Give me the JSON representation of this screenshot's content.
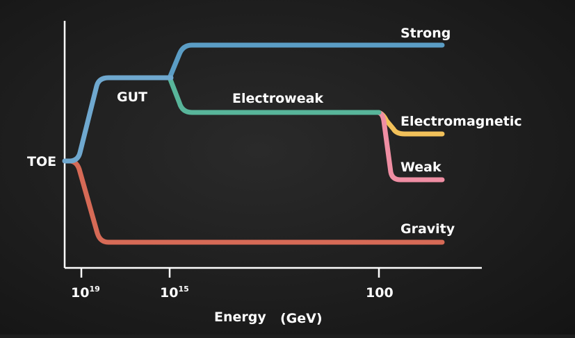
{
  "diagram": {
    "labels": {
      "toe": "TOE",
      "gut": "GUT",
      "strong": "Strong",
      "electroweak": "Electroweak",
      "electromagnetic": "Electromagnetic",
      "weak": "Weak",
      "gravity": "Gravity"
    },
    "x_axis": {
      "title": "Energy",
      "unit": "(GeV)",
      "ticks": [
        {
          "base": "10",
          "exp": "19"
        },
        {
          "base": "10",
          "exp": "15"
        },
        {
          "base": "100",
          "exp": ""
        }
      ]
    },
    "colors": {
      "background": "#1e1e1e",
      "axis": "#ffffff",
      "toe_gut": "#6fa8cf",
      "strong": "#5b9dc5",
      "electroweak": "#58b59a",
      "electromagnetic": "#f2c15a",
      "weak": "#ef8ea3",
      "gravity": "#d66a56"
    }
  }
}
